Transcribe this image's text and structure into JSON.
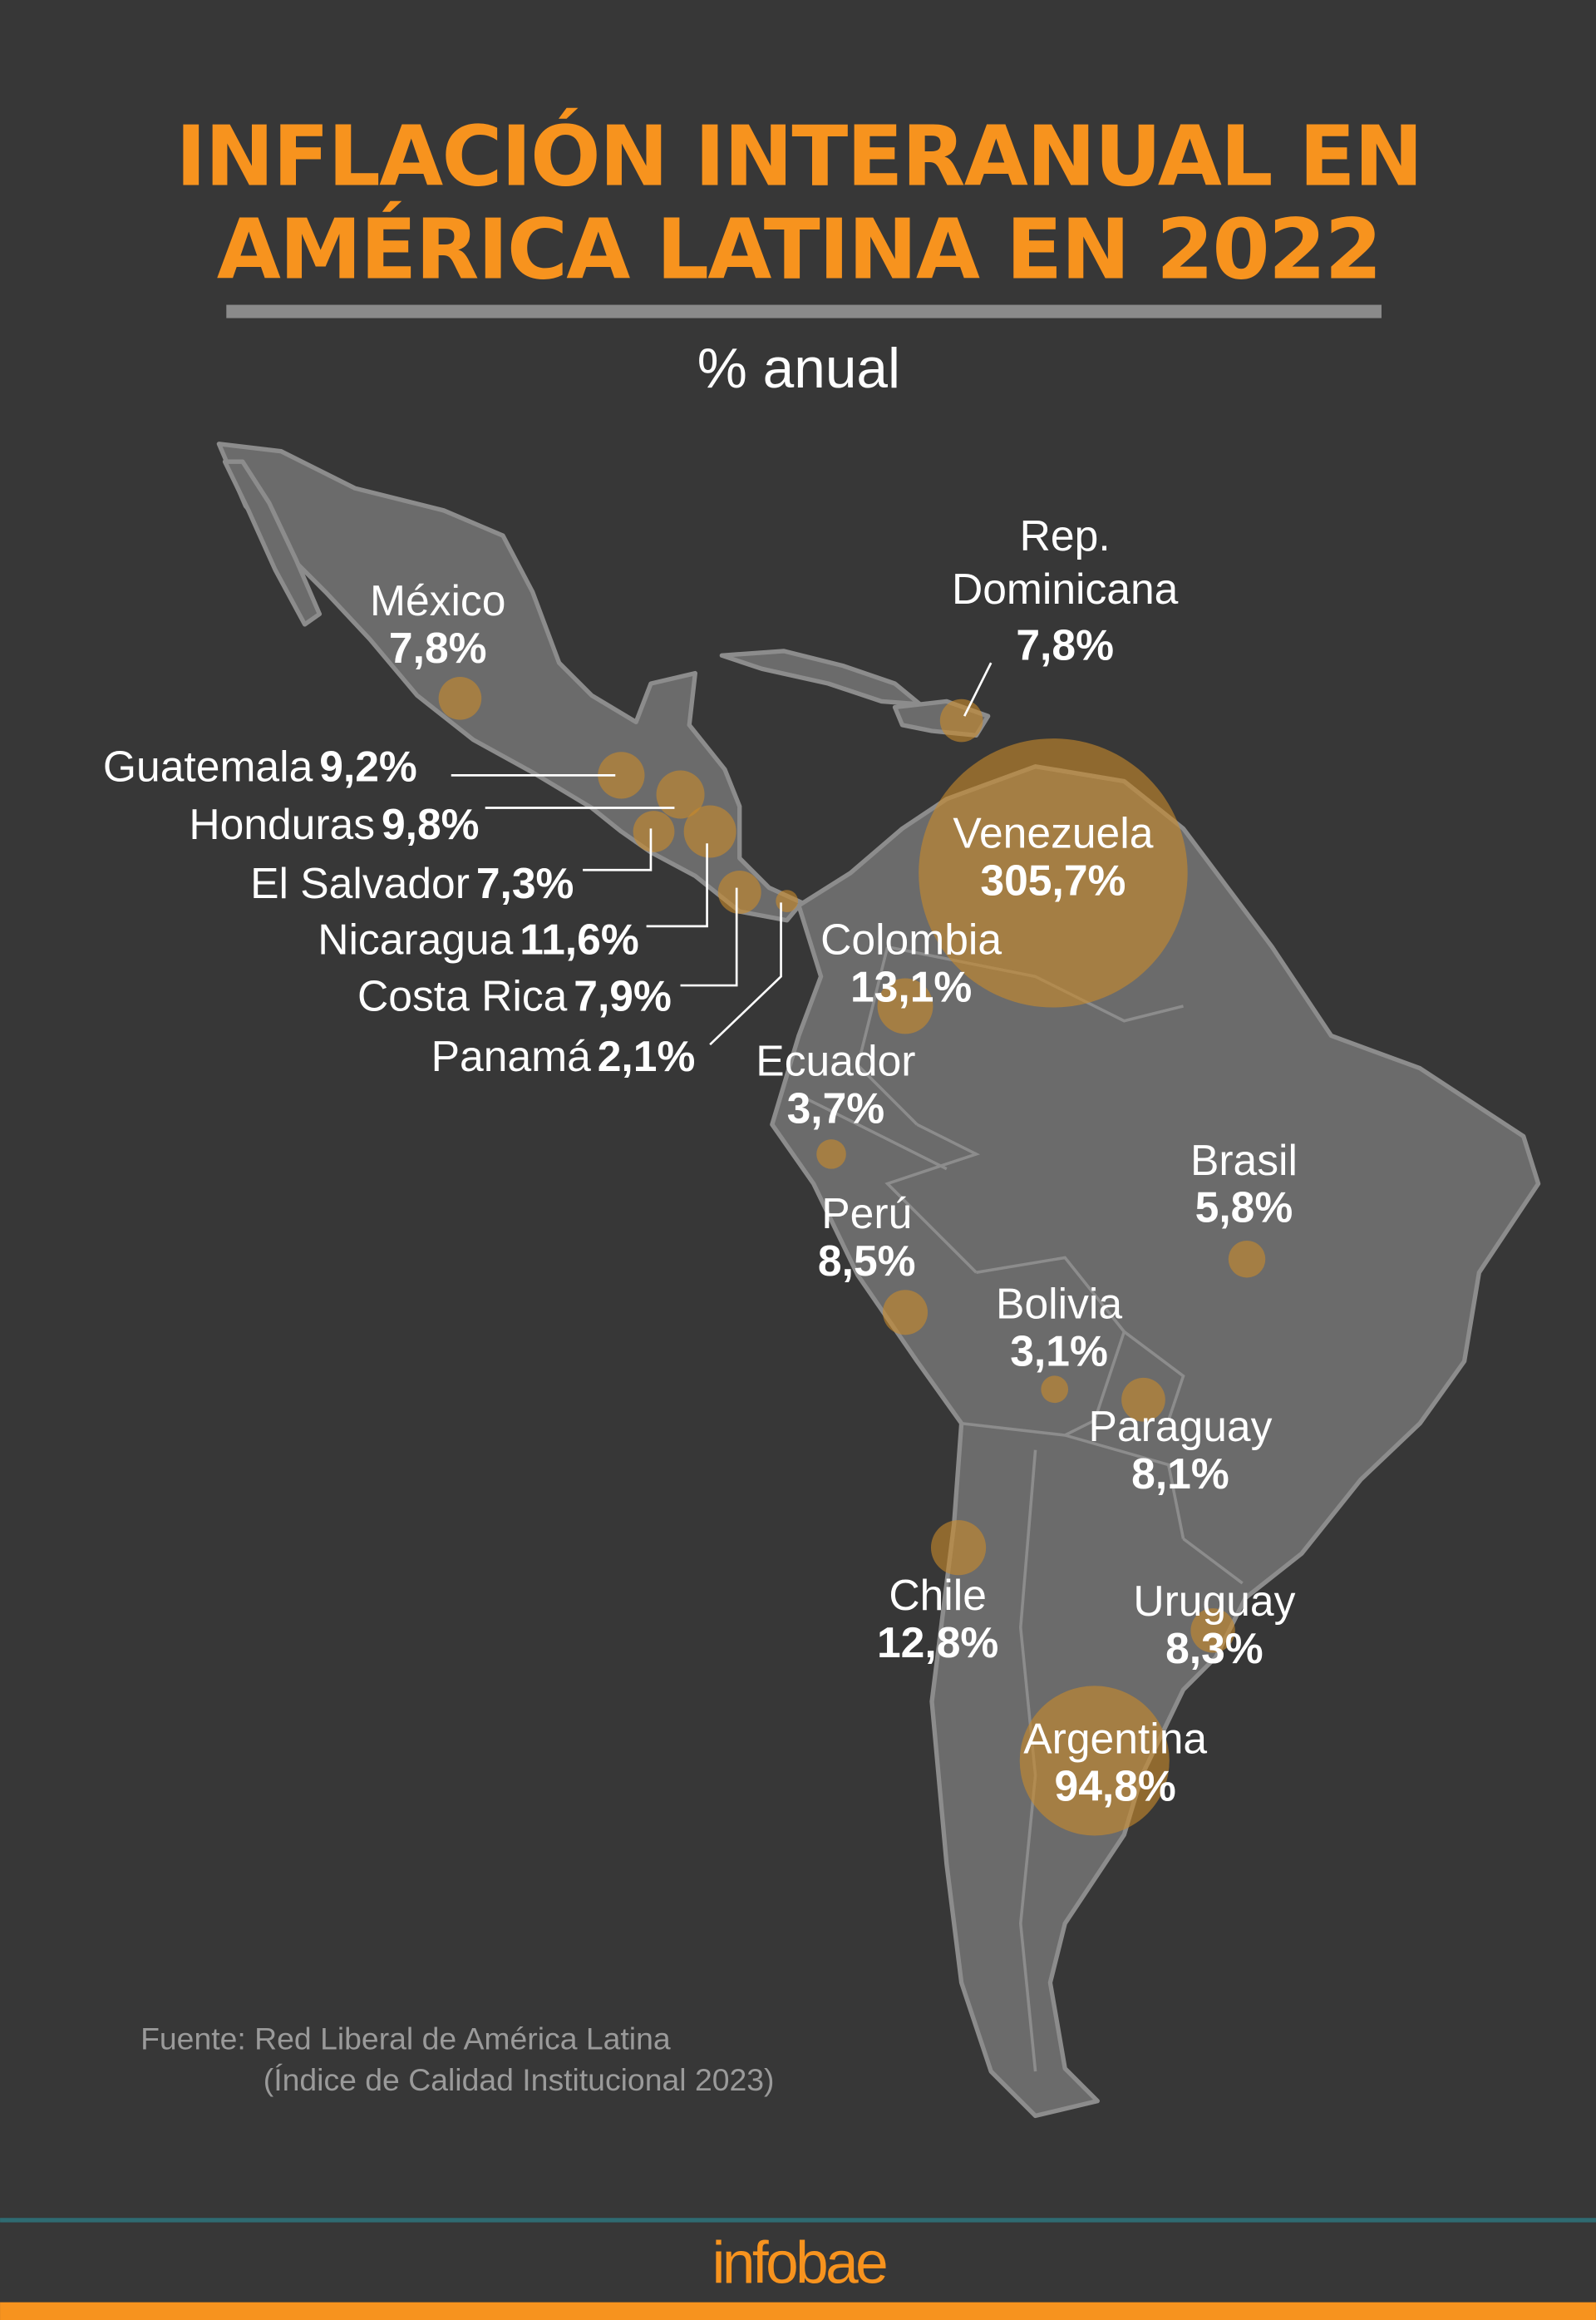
{
  "header": {
    "title_line1": "INFLACIÓN INTERANUAL EN",
    "title_line2": "AMÉRICA LATINA EN 2022",
    "subtitle": "% anual"
  },
  "colors": {
    "background": "#373737",
    "accent": "#f7931e",
    "land": "#6b6b6b",
    "bubble": "#c98a2a",
    "divider": "#2f6b72"
  },
  "chart_data": {
    "type": "bubble-map",
    "title": "INFLACIÓN INTERANUAL EN AMÉRICA LATINA EN 2022",
    "unit": "% anual",
    "countries": [
      {
        "name": "México",
        "value": 7.8,
        "label": "7,8%"
      },
      {
        "name": "Guatemala",
        "value": 9.2,
        "label": "9,2%"
      },
      {
        "name": "Honduras",
        "value": 9.8,
        "label": "9,8%"
      },
      {
        "name": "El Salvador",
        "value": 7.3,
        "label": "7,3%"
      },
      {
        "name": "Nicaragua",
        "value": 11.6,
        "label": "11,6%"
      },
      {
        "name": "Costa Rica",
        "value": 7.9,
        "label": "7,9%"
      },
      {
        "name": "Panamá",
        "value": 2.1,
        "label": "2,1%"
      },
      {
        "name": "Rep. Dominicana",
        "name_line1": "Rep.",
        "name_line2": "Dominicana",
        "value": 7.8,
        "label": "7,8%"
      },
      {
        "name": "Venezuela",
        "value": 305.7,
        "label": "305,7%"
      },
      {
        "name": "Colombia",
        "value": 13.1,
        "label": "13,1%"
      },
      {
        "name": "Ecuador",
        "value": 3.7,
        "label": "3,7%"
      },
      {
        "name": "Perú",
        "value": 8.5,
        "label": "8,5%"
      },
      {
        "name": "Brasil",
        "value": 5.8,
        "label": "5,8%"
      },
      {
        "name": "Bolivia",
        "value": 3.1,
        "label": "3,1%"
      },
      {
        "name": "Paraguay",
        "value": 8.1,
        "label": "8,1%"
      },
      {
        "name": "Chile",
        "value": 12.8,
        "label": "12,8%"
      },
      {
        "name": "Uruguay",
        "value": 8.3,
        "label": "8,3%"
      },
      {
        "name": "Argentina",
        "value": 94.8,
        "label": "94,8%"
      }
    ]
  },
  "source": {
    "line1": "Fuente: Red Liberal de América Latina",
    "line2": "(Índice de Calidad Institucional 2023)"
  },
  "footer": {
    "logo": "infobae"
  }
}
